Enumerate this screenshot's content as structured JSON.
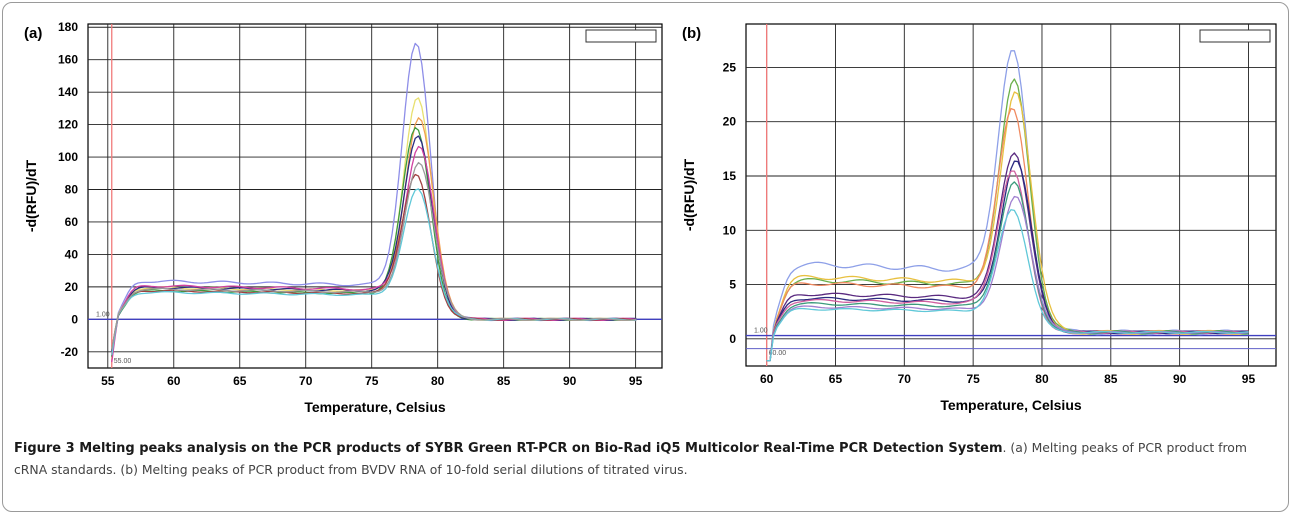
{
  "caption": {
    "heading": "Figure 3 Melting peaks analysis on the PCR products of SYBR Green RT-PCR on Bio-Rad iQ5 Multicolor Real-Time PCR Detection System",
    "text": ". (a) Melting peaks of PCR product from cRNA standards. (b) Melting peaks of PCR product from BVDV RNA of 10-fold serial dilutions of titrated virus."
  },
  "chart_data": [
    {
      "type": "line",
      "panel_label": "(a)",
      "xlabel": "Temperature, Celsius",
      "ylabel": "-d(RFU)/dT",
      "xlim": [
        53.5,
        97
      ],
      "ylim": [
        -30,
        182
      ],
      "xticks": [
        55,
        60,
        65,
        70,
        75,
        80,
        85,
        90,
        95
      ],
      "yticks": [
        -20,
        0,
        20,
        40,
        60,
        80,
        100,
        120,
        140,
        160,
        180
      ],
      "grid": true,
      "threshold": 0,
      "threshold_label": "1.00",
      "start_line_x": 55.3,
      "start_label": "55.00",
      "peak_x": 78.5,
      "series": [
        {
          "color": "#8e8ee8",
          "peak": 174,
          "plateau": 24
        },
        {
          "color": "#e8e070",
          "peak": 140,
          "plateau": 20
        },
        {
          "color": "#f0a050",
          "peak": 128,
          "plateau": 19
        },
        {
          "color": "#3d9b3d",
          "peak": 122,
          "plateau": 18
        },
        {
          "color": "#2a2a80",
          "peak": 117,
          "plateau": 20
        },
        {
          "color": "#d040a0",
          "peak": 110,
          "plateau": 21
        },
        {
          "color": "#a04040",
          "peak": 92,
          "plateau": 18
        },
        {
          "color": "#60c8d8",
          "peak": 83,
          "plateau": 17
        },
        {
          "color": "#9a9a9a",
          "peak": 100,
          "plateau": 19
        }
      ]
    },
    {
      "type": "line",
      "panel_label": "(b)",
      "xlabel": "Temperature, Celsius",
      "ylabel": "-d(RFU)/dT",
      "xlim": [
        58.5,
        97
      ],
      "ylim": [
        -2.5,
        29
      ],
      "xticks": [
        60,
        65,
        70,
        75,
        80,
        85,
        90,
        95
      ],
      "yticks": [
        0,
        5,
        10,
        15,
        20,
        25
      ],
      "grid": true,
      "threshold": 0.3,
      "threshold_label": "1.00",
      "start_line_x": 60,
      "start_label": "60.00",
      "peak_x": 78,
      "series": [
        {
          "color": "#8ea0e8",
          "peak": 27.5,
          "plateau": 7.0
        },
        {
          "color": "#6ab04a",
          "peak": 24.5,
          "plateau": 5.5
        },
        {
          "color": "#e8c040",
          "peak": 23.5,
          "plateau": 5.8
        },
        {
          "color": "#f08a60",
          "peak": 22.0,
          "plateau": 5.2
        },
        {
          "color": "#5a2a80",
          "peak": 17.8,
          "plateau": 4.2
        },
        {
          "color": "#2a2a80",
          "peak": 17.0,
          "plateau": 3.8
        },
        {
          "color": "#d060a0",
          "peak": 16.0,
          "plateau": 3.6
        },
        {
          "color": "#3d9b7d",
          "peak": 14.8,
          "plateau": 3.3
        },
        {
          "color": "#a080d0",
          "peak": 13.5,
          "plateau": 3.0
        },
        {
          "color": "#60c8d8",
          "peak": 12.3,
          "plateau": 2.8
        }
      ]
    }
  ]
}
